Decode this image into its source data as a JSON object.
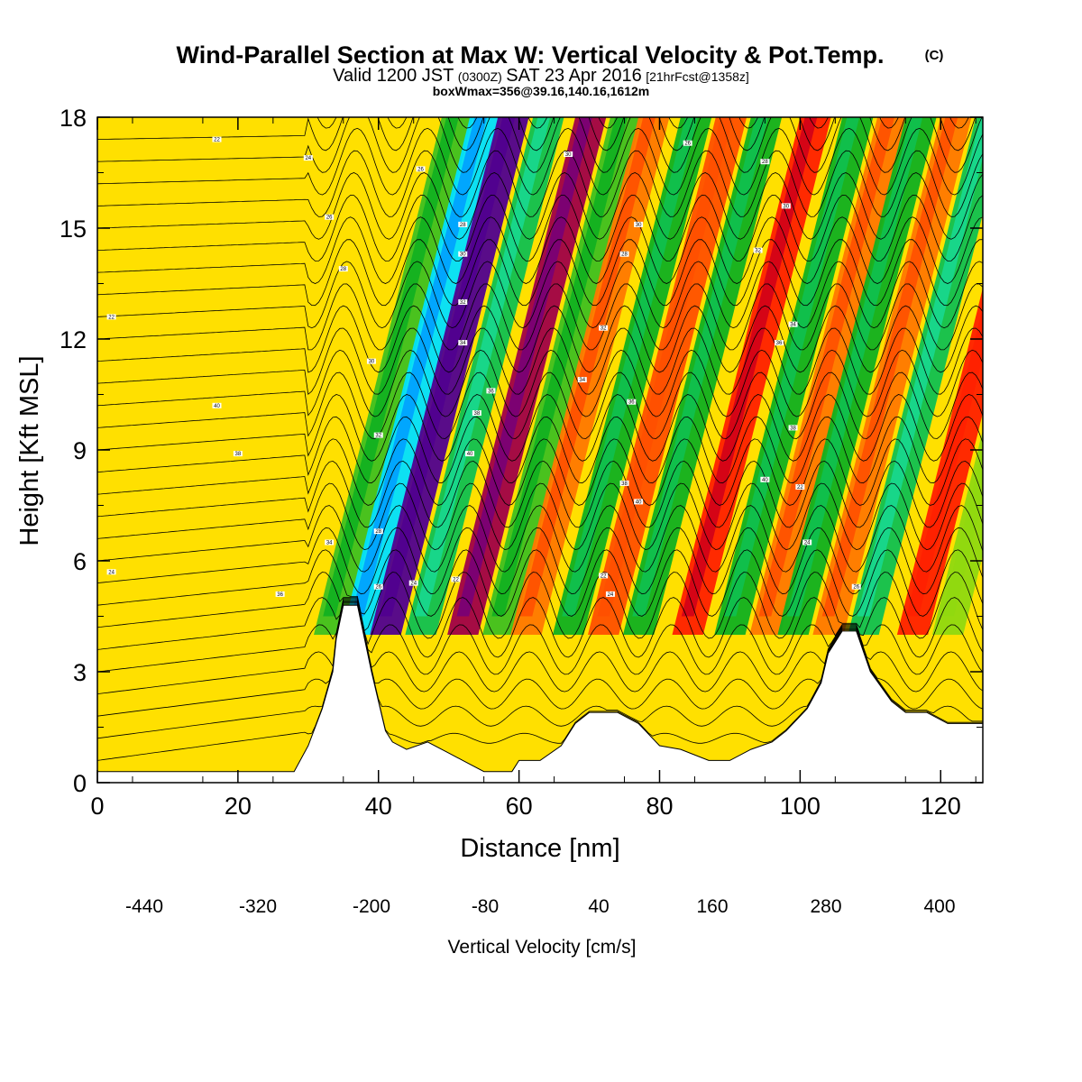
{
  "title": {
    "main": "Wind-Parallel Section at Max W: Vertical Velocity & Pot.Temp.",
    "copyright": "(C)",
    "valid_pre": "Valid 1200 JST",
    "valid_utc": "(0300Z)",
    "valid_post": "SAT 23 Apr 2016",
    "forecast": "[21hrFcst@1358z]",
    "boxinfo": "boxWmax=356@39.16,140.16,1612m"
  },
  "chart_data": {
    "type": "heatmap",
    "xlabel": "Distance [nm]",
    "ylabel": "Height [Kft MSL]",
    "xlim": [
      0,
      126
    ],
    "ylim": [
      0,
      18
    ],
    "xticks": [
      0,
      20,
      40,
      60,
      80,
      100,
      120
    ],
    "yticks": [
      0,
      3,
      6,
      9,
      12,
      15,
      18
    ],
    "colorbar": {
      "title": "Vertical Velocity [cm/s]",
      "labels": [
        "-440",
        "-320",
        "-200",
        "-80",
        "40",
        "160",
        "280",
        "400"
      ],
      "colors": [
        "#0000ff",
        "#0050f0",
        "#00a0ff",
        "#00e0ff",
        "#10e8c8",
        "#18d890",
        "#10c050",
        "#10b020",
        "#40c020",
        "#90d810",
        "#f0f000",
        "#ffe000",
        "#ffc000",
        "#ff9c00",
        "#ff7800",
        "#ff5000",
        "#ff2000",
        "#d00018",
        "#a00048",
        "#780078",
        "#500090"
      ]
    },
    "vertical_velocity_bands": [
      {
        "x": 33,
        "w": -110
      },
      {
        "x": 37,
        "w": -300
      },
      {
        "x": 41,
        "w": 380
      },
      {
        "x": 46,
        "w": -180
      },
      {
        "x": 52,
        "w": 280
      },
      {
        "x": 57,
        "w": -120
      },
      {
        "x": 61,
        "w": 140
      },
      {
        "x": 67,
        "w": -150
      },
      {
        "x": 72,
        "w": 170
      },
      {
        "x": 77,
        "w": -150
      },
      {
        "x": 84,
        "w": 220
      },
      {
        "x": 90,
        "w": -140
      },
      {
        "x": 95,
        "w": 150
      },
      {
        "x": 99,
        "w": -150
      },
      {
        "x": 104,
        "w": 140
      },
      {
        "x": 109,
        "w": -180
      },
      {
        "x": 116,
        "w": 200
      },
      {
        "x": 121,
        "w": -60
      }
    ],
    "terrain": [
      [
        0,
        0.3
      ],
      [
        28,
        0.3
      ],
      [
        30,
        1.0
      ],
      [
        32,
        2.0
      ],
      [
        33.5,
        3.0
      ],
      [
        34,
        3.9
      ],
      [
        35,
        4.8
      ],
      [
        37,
        4.8
      ],
      [
        38,
        3.9
      ],
      [
        39,
        3.0
      ],
      [
        40,
        2.2
      ],
      [
        41,
        1.4
      ],
      [
        42,
        1.1
      ],
      [
        44,
        0.9
      ],
      [
        47,
        1.1
      ],
      [
        50,
        0.8
      ],
      [
        52,
        0.6
      ],
      [
        55,
        0.3
      ],
      [
        57,
        0.3
      ],
      [
        59,
        0.3
      ],
      [
        60,
        0.6
      ],
      [
        63,
        0.6
      ],
      [
        66,
        1.0
      ],
      [
        68,
        1.6
      ],
      [
        70,
        1.9
      ],
      [
        74,
        1.9
      ],
      [
        77,
        1.6
      ],
      [
        80,
        1.0
      ],
      [
        83,
        0.9
      ],
      [
        87,
        0.6
      ],
      [
        90,
        0.6
      ],
      [
        93,
        0.9
      ],
      [
        96,
        1.1
      ],
      [
        98,
        1.4
      ],
      [
        101,
        2.0
      ],
      [
        103,
        2.7
      ],
      [
        104,
        3.5
      ],
      [
        106,
        4.1
      ],
      [
        108,
        4.1
      ],
      [
        110,
        3.0
      ],
      [
        113,
        2.2
      ],
      [
        115,
        1.9
      ],
      [
        118,
        1.9
      ],
      [
        121,
        1.6
      ],
      [
        124,
        1.6
      ],
      [
        126,
        1.6
      ]
    ],
    "contour_labels": [
      "22",
      "24",
      "26",
      "28",
      "30",
      "32",
      "34",
      "36",
      "38",
      "40"
    ]
  }
}
